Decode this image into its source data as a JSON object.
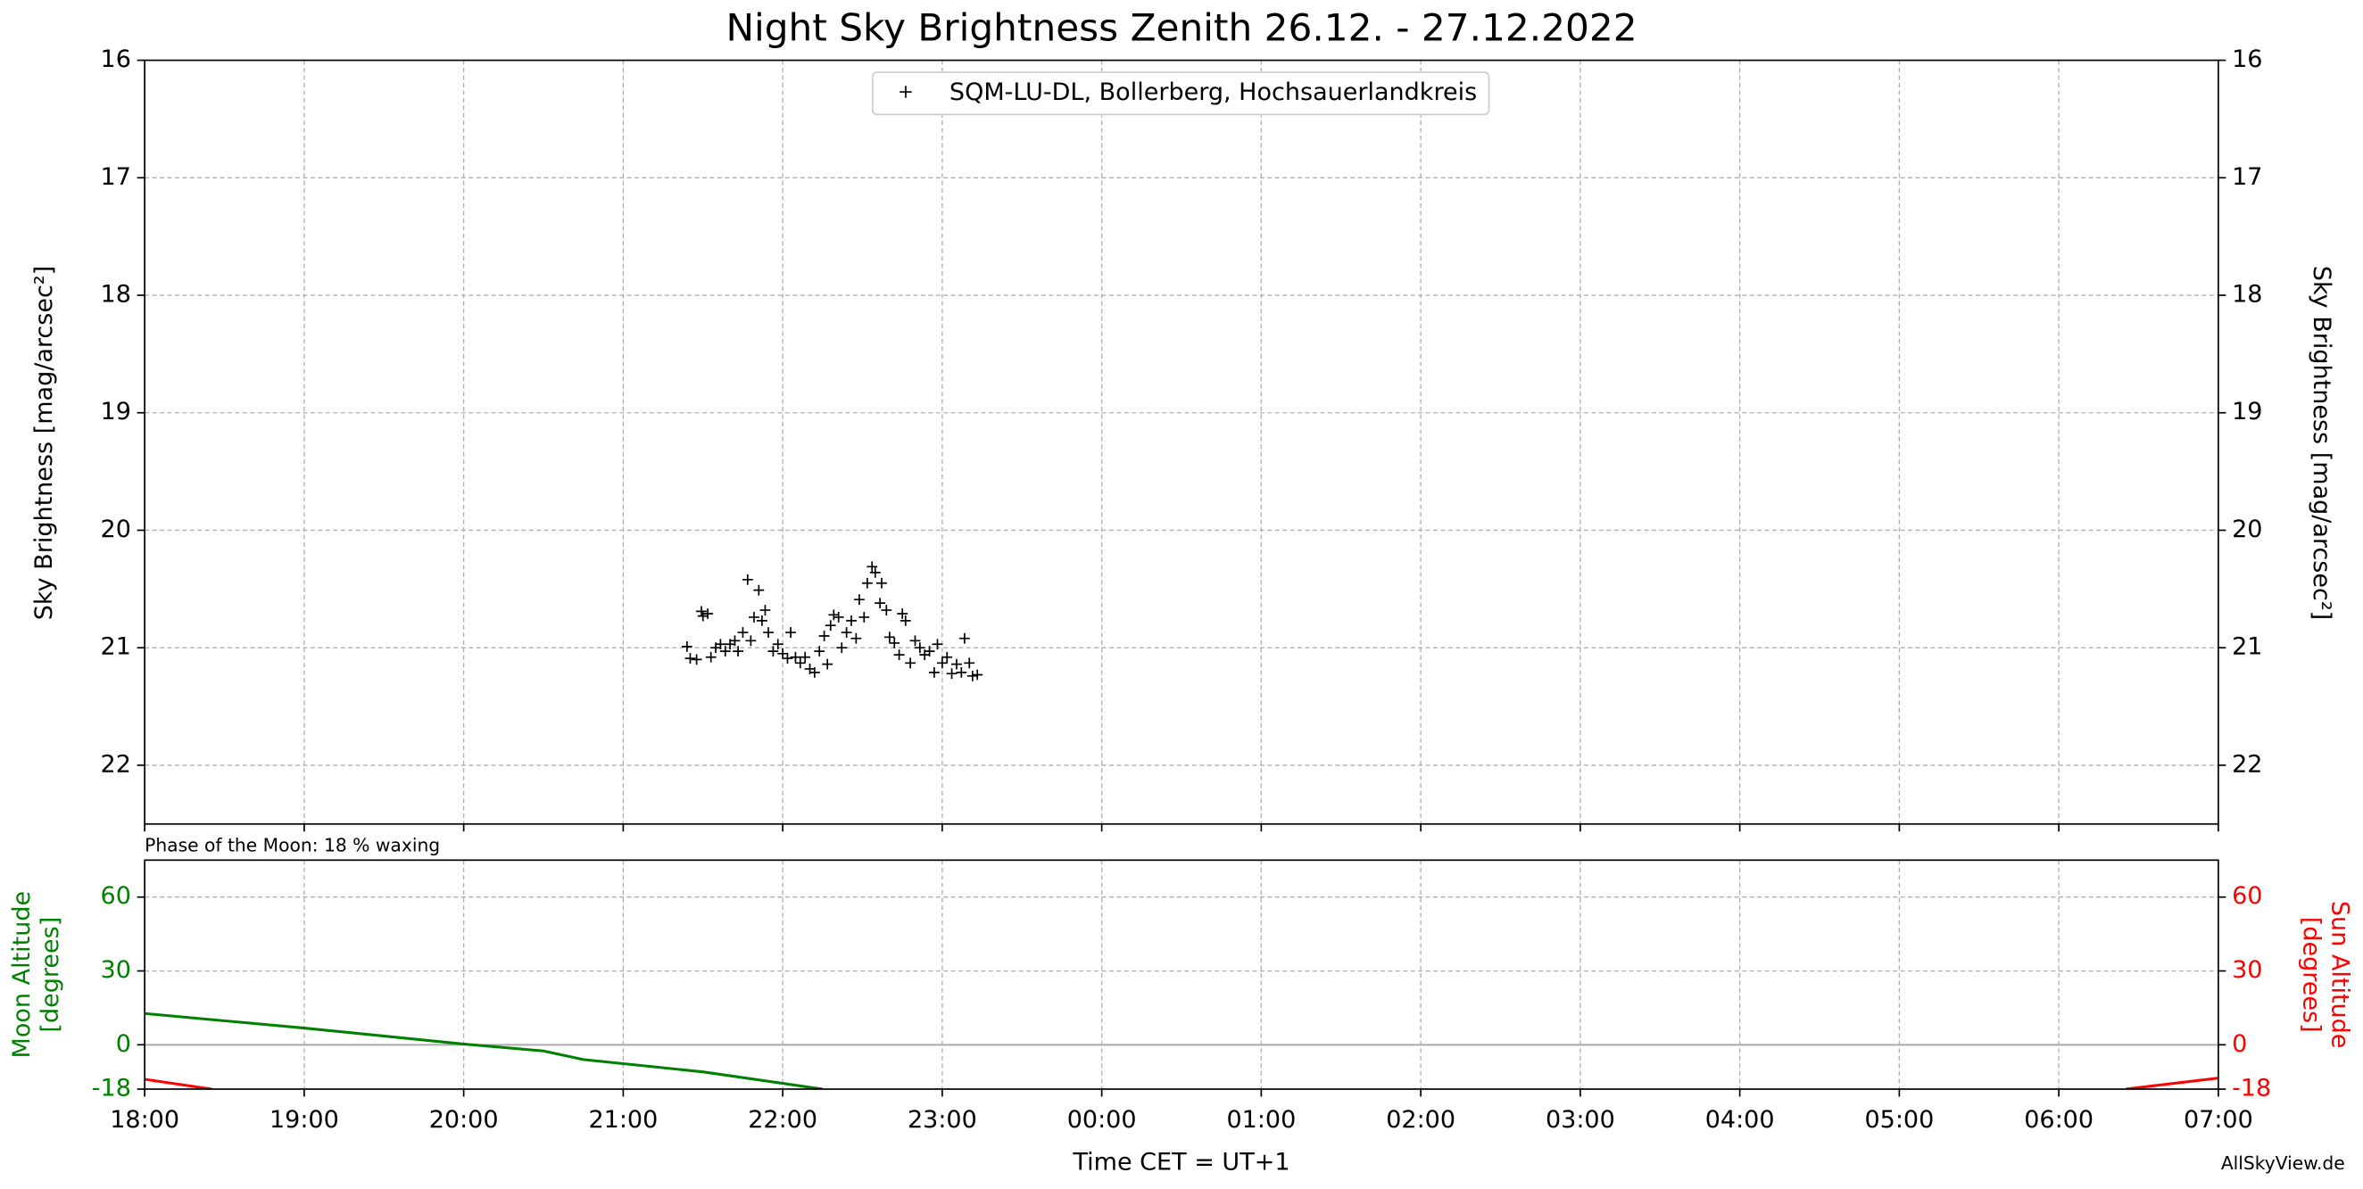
{
  "chart_data": [
    {
      "type": "scatter",
      "title": "Night Sky Brightness Zenith 26.12. - 27.12.2022",
      "ylabel": "Sky Brightness [mag/arcsec²]",
      "xlim": [
        18,
        31
      ],
      "ylim": [
        22.5,
        16
      ],
      "yticks": [
        16,
        17,
        18,
        19,
        20,
        21,
        22
      ],
      "grid": true,
      "legend": "upper center",
      "marker": "+",
      "series": [
        {
          "name": "SQM-LU-DL, Bollerberg, Hochsauerlandkreis",
          "color": "#000000",
          "x": [
            21.4,
            21.42,
            21.46,
            21.49,
            21.5,
            21.53,
            21.55,
            21.58,
            21.61,
            21.64,
            21.67,
            21.7,
            21.72,
            21.75,
            21.78,
            21.8,
            21.82,
            21.85,
            21.87,
            21.89,
            21.91,
            21.94,
            21.97,
            22.0,
            22.03,
            22.05,
            22.08,
            22.11,
            22.14,
            22.17,
            22.2,
            22.23,
            22.26,
            22.28,
            22.3,
            22.32,
            22.35,
            22.37,
            22.4,
            22.43,
            22.46,
            22.48,
            22.51,
            22.53,
            22.56,
            22.58,
            22.61,
            22.62,
            22.65,
            22.67,
            22.7,
            22.73,
            22.75,
            22.77,
            22.8,
            22.83,
            22.86,
            22.89,
            22.92,
            22.95,
            22.97,
            23.0,
            23.03,
            23.06,
            23.09,
            23.12,
            23.14,
            23.17,
            23.19,
            23.22
          ],
          "values": [
            20.99,
            21.09,
            21.1,
            20.69,
            20.73,
            20.71,
            21.08,
            21.0,
            20.97,
            21.03,
            20.97,
            20.94,
            21.03,
            20.87,
            20.42,
            20.94,
            20.74,
            20.51,
            20.77,
            20.68,
            20.87,
            21.03,
            20.97,
            21.05,
            21.09,
            20.87,
            21.08,
            21.13,
            21.08,
            21.18,
            21.21,
            21.03,
            20.9,
            21.14,
            20.81,
            20.72,
            20.74,
            21.0,
            20.87,
            20.77,
            20.92,
            20.59,
            20.74,
            20.45,
            20.31,
            20.36,
            20.62,
            20.45,
            20.68,
            20.91,
            20.96,
            21.06,
            20.71,
            20.77,
            21.13,
            20.94,
            21.0,
            21.06,
            21.03,
            21.21,
            20.97,
            21.13,
            21.08,
            21.22,
            21.14,
            21.21,
            20.92,
            21.13,
            21.24,
            21.23
          ]
        }
      ]
    },
    {
      "type": "line",
      "annotation": "Phase of the Moon: 18 % waxing",
      "xlabel": "Time CET = UT+1",
      "credit": "AllSkyView.de",
      "xlim": [
        18,
        31
      ],
      "xticks": [
        {
          "value": 18,
          "label": "18:00"
        },
        {
          "value": 19,
          "label": "19:00"
        },
        {
          "value": 20,
          "label": "20:00"
        },
        {
          "value": 21,
          "label": "21:00"
        },
        {
          "value": 22,
          "label": "22:00"
        },
        {
          "value": 23,
          "label": "23:00"
        },
        {
          "value": 24,
          "label": "00:00"
        },
        {
          "value": 25,
          "label": "01:00"
        },
        {
          "value": 26,
          "label": "02:00"
        },
        {
          "value": 27,
          "label": "03:00"
        },
        {
          "value": 28,
          "label": "04:00"
        },
        {
          "value": 29,
          "label": "05:00"
        },
        {
          "value": 30,
          "label": "06:00"
        },
        {
          "value": 31,
          "label": "07:00"
        }
      ],
      "ylim": [
        -18,
        75
      ],
      "yticks": [
        -18,
        0,
        30,
        60
      ],
      "y2lim": [
        -18,
        75
      ],
      "y2ticks": [
        -18,
        0,
        30,
        60
      ],
      "ylabel": [
        "Moon Altitude",
        "[degrees]"
      ],
      "ylabel_color": "#008000",
      "y2label": [
        "Sun Altitude",
        "[degrees]"
      ],
      "y2label_color": "#ff0000",
      "hline": 0,
      "grid": true,
      "series": [
        {
          "color": "#008000",
          "axis": "y",
          "x": [
            18,
            19,
            20,
            20.5,
            20.75,
            21.5,
            22.25
          ],
          "values": [
            12.7,
            6.8,
            0.3,
            -2.5,
            -6,
            -11,
            -18
          ]
        },
        {
          "color": "#ff0000",
          "axis": "y2",
          "x": [
            18,
            18.42,
            null,
            30.42,
            31
          ],
          "values": [
            -14,
            -18,
            null,
            -18,
            -13.5
          ]
        }
      ]
    }
  ]
}
